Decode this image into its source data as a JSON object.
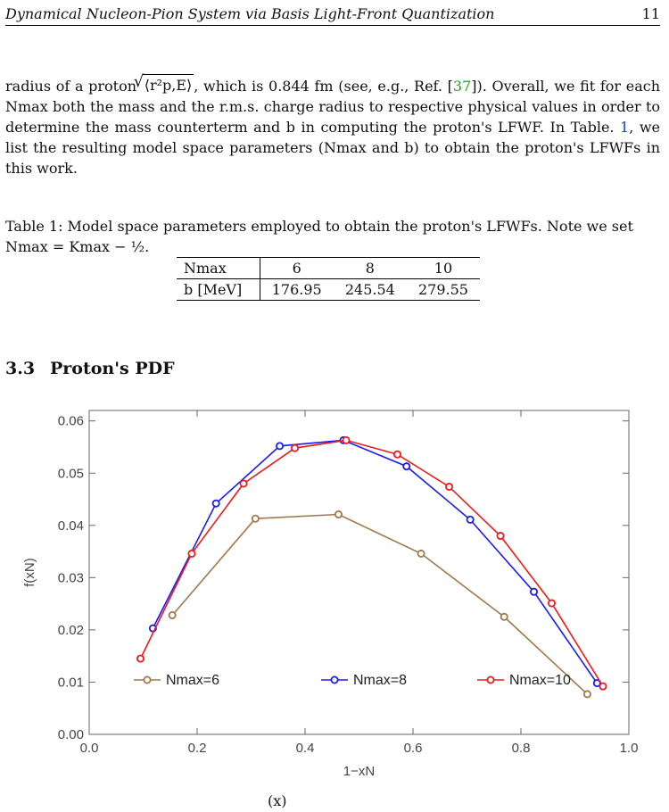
{
  "header": {
    "title": "Dynamical Nucleon-Pion System via Basis Light-Front Quantization",
    "page_number": "11"
  },
  "paragraph": {
    "part1": "radius of a proton ",
    "radius_symbol": "⟨r²p,E⟩",
    "part2": ", which is 0.844 fm (see, e.g., Ref. [",
    "ref": "37",
    "part3": "]). Overall, we fit for each Nmax both the mass and the r.m.s. charge radius to respective physical values in order to determine the mass counterterm and b in computing the proton's LFWF. In Table. ",
    "table_ref": "1",
    "part4": ", we list the resulting model space parameters (Nmax and b) to obtain the proton's LFWFs in this work."
  },
  "table": {
    "caption": "Table 1: Model space parameters employed to obtain the proton's LFWFs. Note we set Nmax = Kmax − ½.",
    "header": [
      "Nmax",
      "6",
      "8",
      "10"
    ],
    "row": [
      "b [MeV]",
      "176.95",
      "245.54",
      "279.55"
    ]
  },
  "section": {
    "number": "3.3",
    "title": "Proton's PDF"
  },
  "figure_foot": "(x)",
  "chart_data": {
    "type": "line",
    "xlabel": "1−xN",
    "ylabel": "f(xN)",
    "xlim": [
      0.0,
      1.0
    ],
    "ylim": [
      0.0,
      0.062
    ],
    "x_ticks": [
      "0.0",
      "0.2",
      "0.4",
      "0.6",
      "0.8",
      "1.0"
    ],
    "y_ticks": [
      "0.00",
      "0.01",
      "0.02",
      "0.03",
      "0.04",
      "0.05",
      "0.06"
    ],
    "legend_placement": "bottom",
    "series": [
      {
        "name": "Nmax=6",
        "color": "#a0784b",
        "x": [
          0.154,
          0.308,
          0.462,
          0.615,
          0.769,
          0.923
        ],
        "y": [
          0.0228,
          0.0413,
          0.0421,
          0.0346,
          0.0225,
          0.0077
        ]
      },
      {
        "name": "Nmax=8",
        "color": "#1a1aee",
        "x": [
          0.118,
          0.235,
          0.353,
          0.471,
          0.588,
          0.706,
          0.824,
          0.941
        ],
        "y": [
          0.0203,
          0.0442,
          0.0552,
          0.0563,
          0.0513,
          0.0411,
          0.0273,
          0.0098
        ]
      },
      {
        "name": "Nmax=10",
        "color": "#ee1a1a",
        "x": [
          0.095,
          0.19,
          0.286,
          0.381,
          0.476,
          0.571,
          0.667,
          0.762,
          0.857,
          0.952
        ],
        "y": [
          0.0145,
          0.0346,
          0.048,
          0.0548,
          0.0563,
          0.0536,
          0.0474,
          0.038,
          0.0251,
          0.0092
        ]
      }
    ]
  }
}
